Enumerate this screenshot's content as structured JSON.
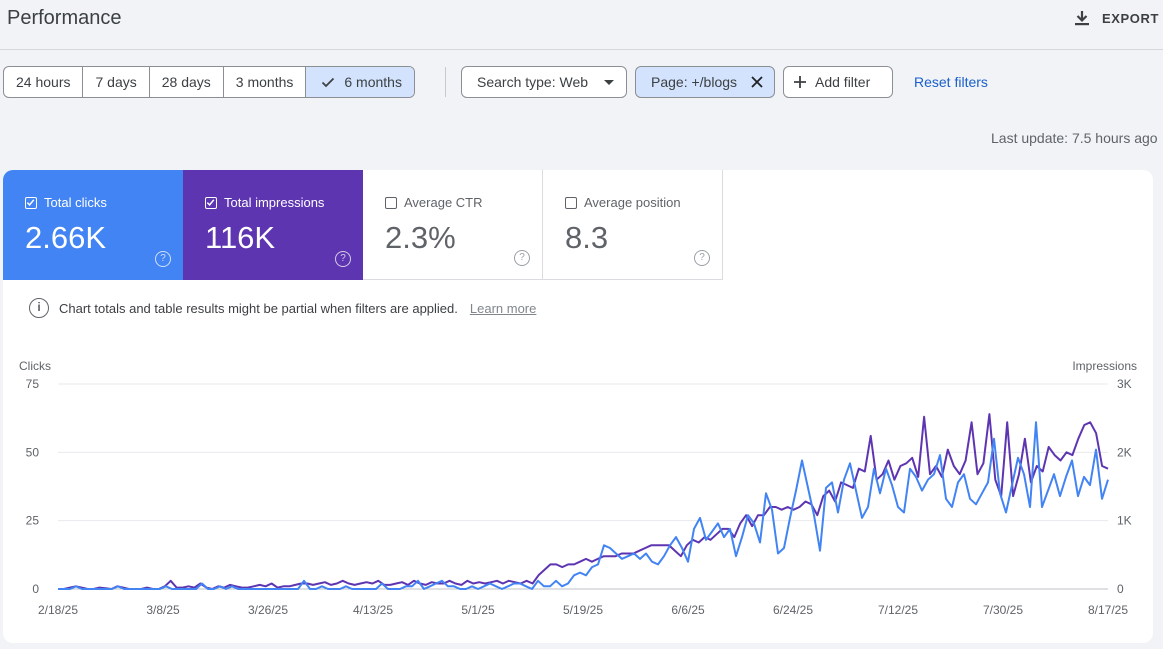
{
  "header": {
    "title": "Performance",
    "export_label": "EXPORT"
  },
  "date_range": {
    "options": [
      "24 hours",
      "7 days",
      "28 days",
      "3 months",
      "6 months"
    ],
    "selected": "6 months"
  },
  "filters": {
    "search_type": "Search type: Web",
    "page_filter": "Page: +/blogs",
    "add_filter": "Add filter",
    "reset": "Reset filters"
  },
  "last_update": "Last update: 7.5 hours ago",
  "metrics": {
    "clicks": {
      "label": "Total clicks",
      "value": "2.66K",
      "checked": true,
      "color": "#4284f3"
    },
    "impressions": {
      "label": "Total impressions",
      "value": "116K",
      "checked": true,
      "color": "#5e35b1"
    },
    "ctr": {
      "label": "Average CTR",
      "value": "2.3%",
      "checked": false
    },
    "position": {
      "label": "Average position",
      "value": "8.3",
      "checked": false
    }
  },
  "notice": {
    "text": "Chart totals and table results might be partial when filters are applied.",
    "link": "Learn more"
  },
  "chart_data": {
    "type": "line",
    "left_axis": {
      "label": "Clicks",
      "ticks": [
        "75",
        "50",
        "25",
        "0"
      ],
      "range": [
        0,
        75
      ]
    },
    "right_axis": {
      "label": "Impressions",
      "ticks": [
        "3K",
        "2K",
        "1K",
        "0"
      ],
      "range": [
        0,
        3000
      ]
    },
    "x_ticks": [
      "2/18/25",
      "3/8/25",
      "3/26/25",
      "4/13/25",
      "5/1/25",
      "5/19/25",
      "6/6/25",
      "6/24/25",
      "7/12/25",
      "7/30/25",
      "8/17/25"
    ],
    "x_start": "2025-02-18",
    "grid": true,
    "series": [
      {
        "name": "Clicks",
        "color": "#4284f3",
        "values": [
          0,
          0,
          0,
          1,
          0,
          0,
          0,
          0,
          0,
          0,
          1,
          0,
          0,
          0,
          0,
          0,
          0,
          0,
          1,
          0,
          0,
          0,
          0,
          0,
          2,
          0,
          0,
          1,
          0,
          1,
          0,
          0,
          0,
          0,
          0,
          0,
          0,
          0,
          0,
          0,
          0,
          3,
          0,
          0,
          1,
          0,
          0,
          0,
          1,
          0,
          0,
          0,
          0,
          0,
          2,
          0,
          0,
          0,
          1,
          1,
          3,
          0,
          1,
          2,
          3,
          1,
          1,
          0,
          0,
          1,
          0,
          1,
          2,
          1,
          0,
          1,
          2,
          2,
          1,
          0,
          3,
          1,
          1,
          3,
          1,
          2,
          5,
          6,
          5,
          8,
          9,
          16,
          15,
          13,
          11,
          12,
          13,
          11,
          13,
          10,
          9,
          12,
          16,
          19,
          15,
          10,
          22,
          26,
          18,
          21,
          24,
          19,
          22,
          12,
          19,
          27,
          24,
          17,
          35,
          29,
          13,
          15,
          26,
          36,
          47,
          37,
          27,
          14,
          37,
          39,
          28,
          40,
          46,
          36,
          26,
          30,
          44,
          35,
          44,
          38,
          30,
          28,
          44,
          41,
          36,
          40,
          42,
          49,
          33,
          30,
          39,
          42,
          33,
          31,
          35,
          39,
          55,
          35,
          28,
          38,
          48,
          42,
          30,
          61,
          30,
          36,
          42,
          34,
          41,
          47,
          34,
          41,
          38,
          51,
          33,
          40
        ],
        "values_are_approximate": true
      },
      {
        "name": "Impressions",
        "color": "#5e35b1",
        "values": [
          0,
          0,
          20,
          40,
          20,
          0,
          0,
          20,
          10,
          0,
          40,
          20,
          0,
          0,
          0,
          20,
          0,
          0,
          40,
          120,
          20,
          20,
          40,
          20,
          80,
          20,
          0,
          40,
          20,
          60,
          40,
          20,
          20,
          40,
          60,
          40,
          80,
          20,
          40,
          40,
          60,
          80,
          80,
          60,
          80,
          100,
          60,
          80,
          120,
          80,
          60,
          80,
          100,
          80,
          120,
          60,
          60,
          80,
          100,
          60,
          120,
          80,
          60,
          100,
          80,
          80,
          120,
          80,
          60,
          120,
          80,
          100,
          80,
          100,
          120,
          80,
          120,
          100,
          80,
          120,
          80,
          200,
          280,
          360,
          360,
          320,
          360,
          360,
          400,
          440,
          400,
          440,
          480,
          480,
          480,
          520,
          520,
          520,
          560,
          600,
          640,
          640,
          640,
          640,
          560,
          480,
          640,
          720,
          680,
          760,
          720,
          800,
          880,
          880,
          760,
          960,
          1080,
          920,
          1080,
          1080,
          1200,
          1200,
          1160,
          1200,
          1160,
          1200,
          1280,
          1240,
          1080,
          1360,
          1440,
          1280,
          1560,
          1520,
          1480,
          1760,
          1720,
          2240,
          1600,
          1680,
          1880,
          1600,
          1800,
          1840,
          1920,
          1640,
          2520,
          1680,
          1800,
          1640,
          2040,
          1800,
          1680,
          1880,
          2440,
          1680,
          1840,
          2560,
          1600,
          1360,
          2440,
          1360,
          1680,
          2200,
          1560,
          1800,
          1720,
          2080,
          1960,
          1880,
          2000,
          1960,
          2200,
          2400,
          2440,
          2280,
          1800,
          1760
        ],
        "values_are_approximate": true
      }
    ]
  }
}
